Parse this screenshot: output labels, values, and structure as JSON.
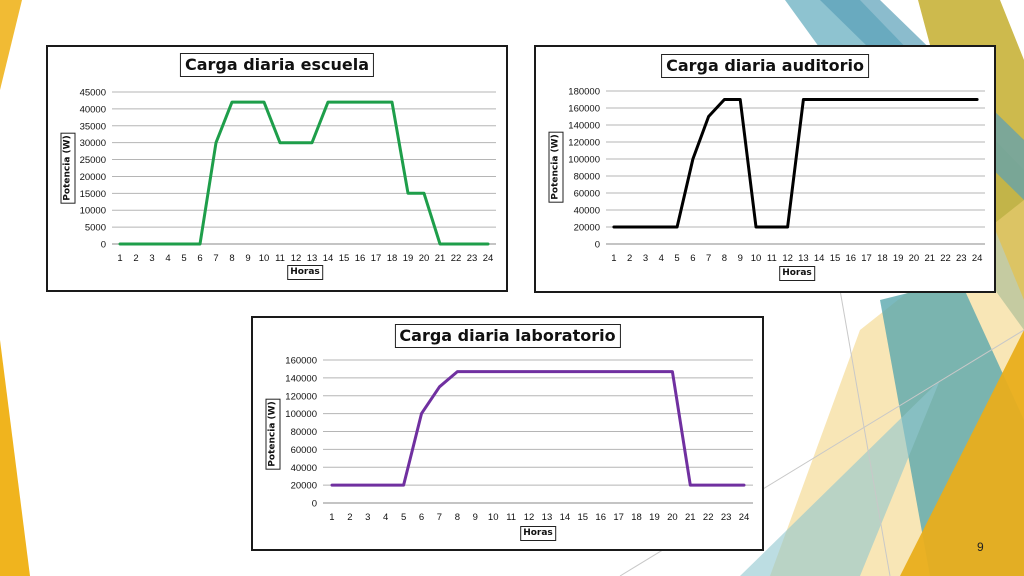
{
  "page_number": "9",
  "chart_data": [
    {
      "type": "line",
      "title": "Carga diaria escuela",
      "xlabel": "Horas",
      "ylabel": "Potencia (W)",
      "categories": [
        "1",
        "2",
        "3",
        "4",
        "5",
        "6",
        "7",
        "8",
        "9",
        "10",
        "11",
        "12",
        "13",
        "14",
        "15",
        "16",
        "17",
        "18",
        "19",
        "20",
        "21",
        "22",
        "23",
        "24"
      ],
      "series": [
        {
          "values": [
            0,
            0,
            0,
            0,
            0,
            0,
            30000,
            42000,
            42000,
            42000,
            30000,
            30000,
            30000,
            42000,
            42000,
            42000,
            42000,
            42000,
            15000,
            15000,
            0,
            0,
            0,
            0
          ]
        }
      ],
      "ylim": [
        0,
        45000
      ],
      "yticks": [
        "45000",
        "40000",
        "35000",
        "30000",
        "25000",
        "20000",
        "15000",
        "10000",
        "5000",
        "0"
      ],
      "grid": true,
      "color": "#1e9e4a"
    },
    {
      "type": "line",
      "title": "Carga diaria auditorio",
      "xlabel": "Horas",
      "ylabel": "Potencia (W)",
      "categories": [
        "1",
        "2",
        "3",
        "4",
        "5",
        "6",
        "7",
        "8",
        "9",
        "10",
        "11",
        "12",
        "13",
        "14",
        "15",
        "16",
        "17",
        "18",
        "19",
        "20",
        "21",
        "22",
        "23",
        "24"
      ],
      "series": [
        {
          "values": [
            20000,
            20000,
            20000,
            20000,
            20000,
            100000,
            150000,
            170000,
            170000,
            20000,
            20000,
            20000,
            170000,
            170000,
            170000,
            170000,
            170000,
            170000,
            170000,
            170000,
            170000,
            170000,
            170000,
            170000
          ]
        }
      ],
      "ylim": [
        0,
        180000
      ],
      "yticks": [
        "180000",
        "160000",
        "140000",
        "120000",
        "100000",
        "80000",
        "60000",
        "40000",
        "20000",
        "0"
      ],
      "grid": true,
      "color": "#000000"
    },
    {
      "type": "line",
      "title": "Carga diaria laboratorio",
      "xlabel": "Horas",
      "ylabel": "Potencia (W)",
      "categories": [
        "1",
        "2",
        "3",
        "4",
        "5",
        "6",
        "7",
        "8",
        "9",
        "10",
        "11",
        "12",
        "13",
        "14",
        "15",
        "16",
        "17",
        "18",
        "19",
        "20",
        "21",
        "22",
        "23",
        "24"
      ],
      "series": [
        {
          "values": [
            20000,
            20000,
            20000,
            20000,
            20000,
            100000,
            130000,
            147000,
            147000,
            147000,
            147000,
            147000,
            147000,
            147000,
            147000,
            147000,
            147000,
            147000,
            147000,
            147000,
            20000,
            20000,
            20000,
            20000
          ]
        }
      ],
      "ylim": [
        0,
        160000
      ],
      "yticks": [
        "160000",
        "140000",
        "120000",
        "100000",
        "80000",
        "60000",
        "40000",
        "20000",
        "0"
      ],
      "grid": true,
      "color": "#7030a0"
    }
  ]
}
